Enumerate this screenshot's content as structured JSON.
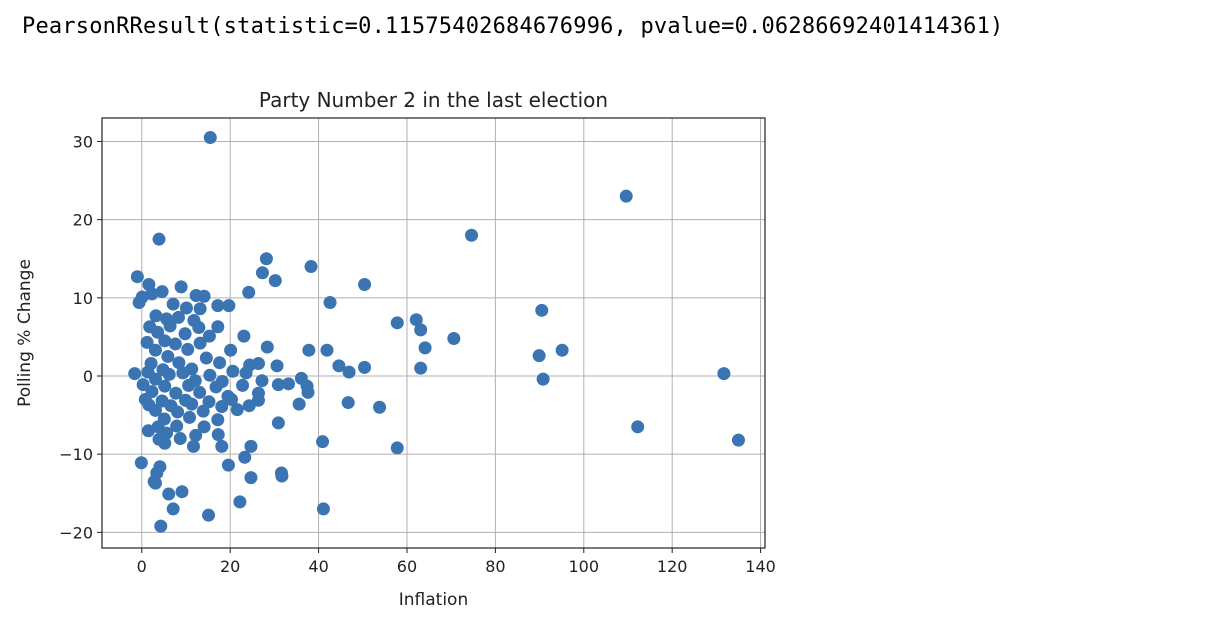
{
  "output": {
    "result_text": "PearsonRResult(statistic=0.11575402684676996, pvalue=0.06286692401414361)"
  },
  "chart_data": {
    "type": "scatter",
    "title": "Party Number 2 in the last election",
    "xlabel": "Inflation",
    "ylabel": "Polling % Change",
    "xlim": [
      -9,
      141
    ],
    "ylim": [
      -22,
      33
    ],
    "xticks": [
      0,
      20,
      40,
      60,
      80,
      100,
      120,
      140
    ],
    "yticks": [
      -20,
      -10,
      0,
      10,
      20,
      30
    ],
    "grid": true,
    "marker_color": "#3a74b3",
    "points": [
      [
        15.5,
        30.5
      ],
      [
        109.6,
        23
      ],
      [
        74.6,
        18
      ],
      [
        3.9,
        17.5
      ],
      [
        28.2,
        15
      ],
      [
        38.3,
        14
      ],
      [
        27.3,
        13.2
      ],
      [
        -1,
        12.7
      ],
      [
        30.2,
        12.2
      ],
      [
        1.6,
        11.7
      ],
      [
        8.9,
        11.4
      ],
      [
        50.4,
        11.7
      ],
      [
        4.6,
        10.8
      ],
      [
        2.3,
        10.5
      ],
      [
        24.2,
        10.7
      ],
      [
        12.3,
        10.3
      ],
      [
        14.1,
        10.2
      ],
      [
        0.1,
        10.1
      ],
      [
        -0.6,
        9.4
      ],
      [
        42.6,
        9.4
      ],
      [
        7.1,
        9.2
      ],
      [
        19.7,
        9
      ],
      [
        17.2,
        9
      ],
      [
        10.1,
        8.7
      ],
      [
        13.2,
        8.6
      ],
      [
        90.5,
        8.4
      ],
      [
        3.2,
        7.7
      ],
      [
        8.3,
        7.5
      ],
      [
        5.6,
        7.3
      ],
      [
        11.8,
        7.1
      ],
      [
        62.1,
        7.2
      ],
      [
        57.8,
        6.8
      ],
      [
        1.8,
        6.3
      ],
      [
        6.4,
        6.4
      ],
      [
        12.9,
        6.2
      ],
      [
        17.2,
        6.3
      ],
      [
        3.6,
        5.6
      ],
      [
        9.8,
        5.4
      ],
      [
        15.3,
        5.1
      ],
      [
        23.1,
        5.1
      ],
      [
        63.1,
        5.9
      ],
      [
        5.2,
        4.5
      ],
      [
        70.6,
        4.8
      ],
      [
        1.2,
        4.3
      ],
      [
        7.6,
        4.1
      ],
      [
        13.2,
        4.2
      ],
      [
        3.1,
        3.3
      ],
      [
        10.4,
        3.4
      ],
      [
        20.1,
        3.3
      ],
      [
        28.4,
        3.7
      ],
      [
        37.8,
        3.3
      ],
      [
        41.9,
        3.3
      ],
      [
        64.1,
        3.6
      ],
      [
        95.1,
        3.3
      ],
      [
        89.9,
        2.6
      ],
      [
        5.9,
        2.5
      ],
      [
        14.6,
        2.3
      ],
      [
        2.1,
        1.6
      ],
      [
        8.4,
        1.7
      ],
      [
        17.6,
        1.7
      ],
      [
        24.4,
        1.4
      ],
      [
        26.4,
        1.6
      ],
      [
        30.6,
        1.3
      ],
      [
        44.6,
        1.3
      ],
      [
        50.4,
        1.1
      ],
      [
        63.1,
        1
      ],
      [
        4.8,
        0.8
      ],
      [
        11.3,
        0.9
      ],
      [
        20.6,
        0.6
      ],
      [
        -1.6,
        0.3
      ],
      [
        1.4,
        0.5
      ],
      [
        6.2,
        0.2
      ],
      [
        9.3,
        0.4
      ],
      [
        15.4,
        0.1
      ],
      [
        23.6,
        0.4
      ],
      [
        46.9,
        0.5
      ],
      [
        131.7,
        0.3
      ],
      [
        3.1,
        -0.4
      ],
      [
        12.1,
        -0.6
      ],
      [
        18.2,
        -0.7
      ],
      [
        27.2,
        -0.6
      ],
      [
        36.1,
        -0.3
      ],
      [
        90.8,
        -0.4
      ],
      [
        0.3,
        -1.1
      ],
      [
        5.2,
        -1.3
      ],
      [
        10.6,
        -1.2
      ],
      [
        16.8,
        -1.4
      ],
      [
        22.8,
        -1.2
      ],
      [
        30.9,
        -1.1
      ],
      [
        33.2,
        -1
      ],
      [
        37.4,
        -1.3
      ],
      [
        2.3,
        -2
      ],
      [
        7.7,
        -2.2
      ],
      [
        13.1,
        -2.1
      ],
      [
        19.5,
        -2.6
      ],
      [
        26.4,
        -2.2
      ],
      [
        37.6,
        -2.1
      ],
      [
        0.8,
        -3
      ],
      [
        4.6,
        -3.2
      ],
      [
        9.9,
        -3.1
      ],
      [
        15.2,
        -3.3
      ],
      [
        20.3,
        -3
      ],
      [
        26.4,
        -3.1
      ],
      [
        46.7,
        -3.4
      ],
      [
        1.6,
        -3.7
      ],
      [
        6.6,
        -3.8
      ],
      [
        11.3,
        -3.6
      ],
      [
        18.1,
        -3.9
      ],
      [
        24.3,
        -3.8
      ],
      [
        35.6,
        -3.6
      ],
      [
        53.8,
        -4
      ],
      [
        3.1,
        -4.4
      ],
      [
        8.1,
        -4.6
      ],
      [
        13.9,
        -4.5
      ],
      [
        21.6,
        -4.3
      ],
      [
        5.1,
        -5.5
      ],
      [
        10.8,
        -5.3
      ],
      [
        17.2,
        -5.6
      ],
      [
        30.9,
        -6
      ],
      [
        3.7,
        -6.5
      ],
      [
        7.9,
        -6.4
      ],
      [
        14.1,
        -6.5
      ],
      [
        112.2,
        -6.5
      ],
      [
        1.5,
        -7
      ],
      [
        5.6,
        -7.3
      ],
      [
        12.2,
        -7.6
      ],
      [
        17.3,
        -7.5
      ],
      [
        3.9,
        -8.1
      ],
      [
        8.7,
        -8
      ],
      [
        40.9,
        -8.4
      ],
      [
        135,
        -8.2
      ],
      [
        5.2,
        -8.6
      ],
      [
        11.7,
        -9
      ],
      [
        18.1,
        -9
      ],
      [
        24.7,
        -9
      ],
      [
        57.8,
        -9.2
      ],
      [
        23.3,
        -10.4
      ],
      [
        -0.1,
        -11.1
      ],
      [
        4.1,
        -11.6
      ],
      [
        19.6,
        -11.4
      ],
      [
        31.6,
        -12.4
      ],
      [
        3.4,
        -12.4
      ],
      [
        31.7,
        -12.8
      ],
      [
        24.7,
        -13
      ],
      [
        3.1,
        -13.7
      ],
      [
        2.8,
        -13.5
      ],
      [
        9.1,
        -14.8
      ],
      [
        6.1,
        -15.1
      ],
      [
        22.2,
        -16.1
      ],
      [
        7.1,
        -17
      ],
      [
        41.1,
        -17
      ],
      [
        15.1,
        -17.8
      ],
      [
        4.3,
        -19.2
      ]
    ]
  }
}
